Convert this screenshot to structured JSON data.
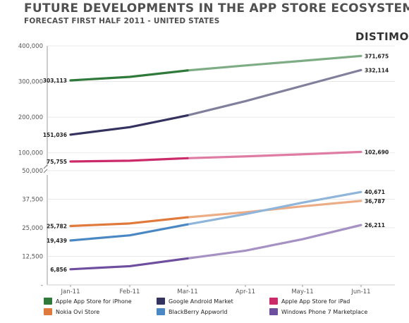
{
  "header": {
    "title": "FUTURE DEVELOPMENTS IN THE APP STORE ECOSYSTEM",
    "subtitle": "FORECAST FIRST HALF 2011 - UNITED STATES",
    "brand": "DISTIMO"
  },
  "colors": {
    "iphone": "#2f7a3a",
    "android": "#34325f",
    "ipad": "#cc2b6a",
    "ovi": "#e07a3c",
    "blackberry": "#4a88c4",
    "wp7": "#6e4e9e"
  },
  "chart_data": {
    "type": "line",
    "title": "FUTURE DEVELOPMENTS IN THE APP STORE ECOSYSTEM",
    "subtitle": "FORECAST FIRST HALF 2011 - UNITED STATES",
    "categories": [
      "Jan-11",
      "Feb-11",
      "Mar-11",
      "Apr-11",
      "May-11",
      "Jun-11"
    ],
    "forecast_start_index": 2,
    "panels": [
      {
        "name": "upper",
        "ylim": [
          50000,
          400000
        ],
        "yticks": [
          "400,000",
          "300,000",
          "200,000",
          "100,000",
          "50,000"
        ],
        "ytick_values": [
          400000,
          300000,
          200000,
          100000,
          50000
        ],
        "series": [
          {
            "name": "Apple App Store for iPhone",
            "color_key": "iphone",
            "values": [
              303113,
              313000,
              331000,
              345000,
              358000,
              371675
            ],
            "labels": [
              "303,113",
              "371,675"
            ]
          },
          {
            "name": "Google Android Market",
            "color_key": "android",
            "values": [
              151036,
              172000,
              205000,
              245000,
              288000,
              332114
            ],
            "labels": [
              "151,036",
              "332,114"
            ]
          },
          {
            "name": "Apple App Store for iPad",
            "color_key": "ipad",
            "values": [
              75755,
              78000,
              85000,
              90000,
              96000,
              102690
            ],
            "labels": [
              "75,755",
              "102,690"
            ]
          }
        ]
      },
      {
        "name": "lower",
        "ylim": [
          0,
          50000
        ],
        "yticks": [
          "37,500",
          "25,000",
          "12,500",
          "-"
        ],
        "ytick_values": [
          37500,
          25000,
          12500,
          0
        ],
        "series": [
          {
            "name": "Nokia Ovi Store",
            "color_key": "ovi",
            "values": [
              25782,
              26900,
              29600,
              31800,
              34400,
              36787
            ],
            "labels": [
              "25,782",
              "36,787"
            ]
          },
          {
            "name": "BlackBerry Appworld",
            "color_key": "blackberry",
            "values": [
              19439,
              21700,
              26500,
              31000,
              36000,
              40671
            ],
            "labels": [
              "19,439",
              "40,671"
            ]
          },
          {
            "name": "Windows Phone 7 Marketplace",
            "color_key": "wp7",
            "values": [
              6856,
              8200,
              11600,
              15000,
              20000,
              26211
            ],
            "labels": [
              "6,856",
              "26,211"
            ]
          }
        ]
      }
    ]
  },
  "legend": [
    {
      "label": "Apple App Store for iPhone",
      "color_key": "iphone"
    },
    {
      "label": "Google Android Market",
      "color_key": "android"
    },
    {
      "label": "Apple App Store for iPad",
      "color_key": "ipad"
    },
    {
      "label": "Nokia Ovi Store",
      "color_key": "ovi"
    },
    {
      "label": "BlackBerry Appworld",
      "color_key": "blackberry"
    },
    {
      "label": "Windows Phone 7 Marketplace",
      "color_key": "wp7"
    }
  ]
}
